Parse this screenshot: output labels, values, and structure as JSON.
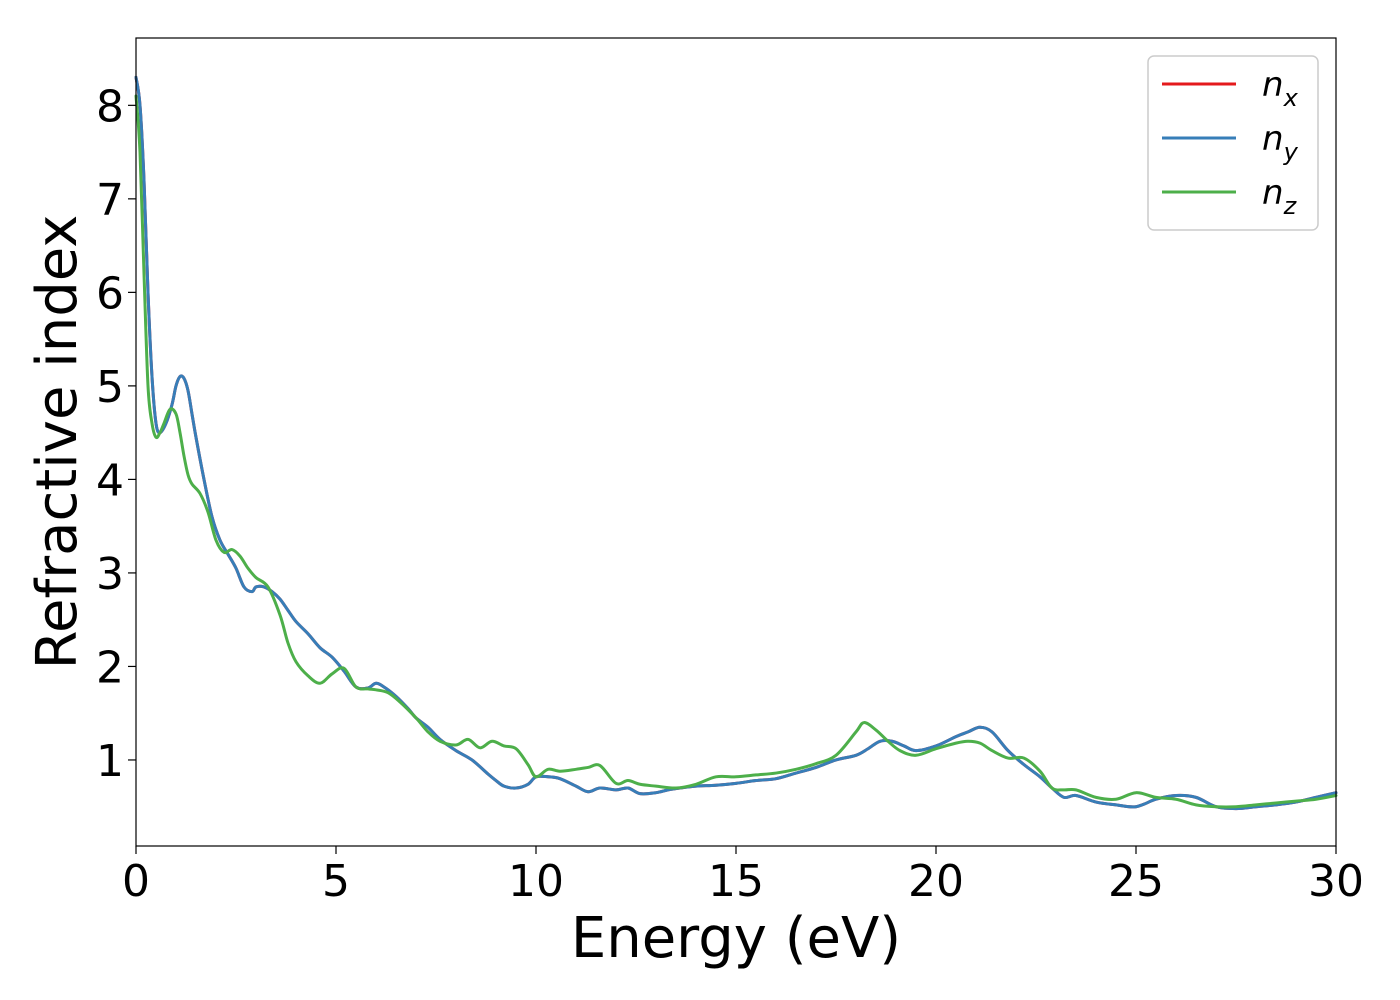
{
  "chart_data": {
    "type": "line",
    "title": "",
    "xlabel": "Energy (eV)",
    "ylabel": "Refractive index",
    "xlim": [
      0,
      30
    ],
    "ylim": [
      0.08,
      8.72
    ],
    "xticks": [
      0,
      5,
      10,
      15,
      20,
      25,
      30
    ],
    "yticks": [
      1,
      2,
      3,
      4,
      5,
      6,
      7,
      8
    ],
    "grid": false,
    "legend_position": "top-right",
    "series": [
      {
        "name": "n_x",
        "label_main": "n",
        "label_sub": "x",
        "color": "#e41a1c",
        "x": [
          0,
          0.1,
          0.2,
          0.3,
          0.4,
          0.5,
          0.6,
          0.75,
          0.9,
          1.0,
          1.1,
          1.2,
          1.3,
          1.4,
          1.5,
          1.7,
          1.9,
          2.1,
          2.3,
          2.5,
          2.7,
          2.9,
          3.0,
          3.2,
          3.4,
          3.6,
          3.8,
          4.0,
          4.3,
          4.6,
          4.9,
          5.2,
          5.5,
          5.8,
          6.0,
          6.2,
          6.5,
          6.8,
          7.0,
          7.3,
          7.6,
          8.0,
          8.4,
          8.8,
          9.0,
          9.2,
          9.5,
          9.8,
          10.0,
          10.3,
          10.6,
          11.0,
          11.3,
          11.6,
          12.0,
          12.3,
          12.6,
          13.0,
          13.3,
          13.6,
          14.0,
          14.5,
          15.0,
          15.5,
          16.0,
          16.5,
          17.0,
          17.5,
          18.0,
          18.3,
          18.6,
          18.9,
          19.2,
          19.5,
          20.0,
          20.5,
          20.8,
          21.1,
          21.4,
          21.8,
          22.2,
          22.6,
          22.9,
          23.2,
          23.5,
          24.0,
          24.5,
          25.0,
          25.5,
          26.0,
          26.5,
          27.0,
          27.5,
          28.0,
          28.5,
          29.0,
          29.5,
          30.0
        ],
        "y": [
          8.3,
          8.0,
          7.2,
          6.0,
          5.1,
          4.6,
          4.5,
          4.6,
          4.8,
          5.0,
          5.1,
          5.08,
          4.95,
          4.7,
          4.45,
          4.0,
          3.6,
          3.35,
          3.2,
          3.05,
          2.85,
          2.8,
          2.85,
          2.85,
          2.8,
          2.72,
          2.6,
          2.48,
          2.35,
          2.2,
          2.1,
          1.95,
          1.78,
          1.77,
          1.82,
          1.78,
          1.68,
          1.55,
          1.45,
          1.35,
          1.22,
          1.1,
          1.0,
          0.85,
          0.78,
          0.72,
          0.7,
          0.74,
          0.82,
          0.82,
          0.8,
          0.72,
          0.66,
          0.7,
          0.68,
          0.7,
          0.64,
          0.65,
          0.68,
          0.7,
          0.72,
          0.73,
          0.75,
          0.78,
          0.8,
          0.86,
          0.92,
          1.0,
          1.05,
          1.12,
          1.2,
          1.2,
          1.15,
          1.1,
          1.15,
          1.25,
          1.3,
          1.35,
          1.3,
          1.1,
          0.95,
          0.82,
          0.7,
          0.6,
          0.62,
          0.55,
          0.52,
          0.5,
          0.58,
          0.62,
          0.6,
          0.5,
          0.48,
          0.5,
          0.52,
          0.55,
          0.6,
          0.65
        ]
      },
      {
        "name": "n_y",
        "label_main": "n",
        "label_sub": "y",
        "color": "#377eb8",
        "x": [
          0,
          0.1,
          0.2,
          0.3,
          0.4,
          0.5,
          0.6,
          0.75,
          0.9,
          1.0,
          1.1,
          1.2,
          1.3,
          1.4,
          1.5,
          1.7,
          1.9,
          2.1,
          2.3,
          2.5,
          2.7,
          2.9,
          3.0,
          3.2,
          3.4,
          3.6,
          3.8,
          4.0,
          4.3,
          4.6,
          4.9,
          5.2,
          5.5,
          5.8,
          6.0,
          6.2,
          6.5,
          6.8,
          7.0,
          7.3,
          7.6,
          8.0,
          8.4,
          8.8,
          9.0,
          9.2,
          9.5,
          9.8,
          10.0,
          10.3,
          10.6,
          11.0,
          11.3,
          11.6,
          12.0,
          12.3,
          12.6,
          13.0,
          13.3,
          13.6,
          14.0,
          14.5,
          15.0,
          15.5,
          16.0,
          16.5,
          17.0,
          17.5,
          18.0,
          18.3,
          18.6,
          18.9,
          19.2,
          19.5,
          20.0,
          20.5,
          20.8,
          21.1,
          21.4,
          21.8,
          22.2,
          22.6,
          22.9,
          23.2,
          23.5,
          24.0,
          24.5,
          25.0,
          25.5,
          26.0,
          26.5,
          27.0,
          27.5,
          28.0,
          28.5,
          29.0,
          29.5,
          30.0
        ],
        "y": [
          8.3,
          8.0,
          7.2,
          6.0,
          5.1,
          4.6,
          4.5,
          4.6,
          4.8,
          5.0,
          5.1,
          5.08,
          4.95,
          4.7,
          4.45,
          4.0,
          3.6,
          3.35,
          3.2,
          3.05,
          2.85,
          2.8,
          2.85,
          2.85,
          2.8,
          2.72,
          2.6,
          2.48,
          2.35,
          2.2,
          2.1,
          1.95,
          1.78,
          1.77,
          1.82,
          1.78,
          1.68,
          1.55,
          1.45,
          1.35,
          1.22,
          1.1,
          1.0,
          0.85,
          0.78,
          0.72,
          0.7,
          0.74,
          0.82,
          0.82,
          0.8,
          0.72,
          0.66,
          0.7,
          0.68,
          0.7,
          0.64,
          0.65,
          0.68,
          0.7,
          0.72,
          0.73,
          0.75,
          0.78,
          0.8,
          0.86,
          0.92,
          1.0,
          1.05,
          1.12,
          1.2,
          1.2,
          1.15,
          1.1,
          1.15,
          1.25,
          1.3,
          1.35,
          1.3,
          1.1,
          0.95,
          0.82,
          0.7,
          0.6,
          0.62,
          0.55,
          0.52,
          0.5,
          0.58,
          0.62,
          0.6,
          0.5,
          0.48,
          0.5,
          0.52,
          0.55,
          0.6,
          0.65
        ]
      },
      {
        "name": "n_z",
        "label_main": "n",
        "label_sub": "z",
        "color": "#4daf4a",
        "x": [
          0,
          0.1,
          0.2,
          0.3,
          0.4,
          0.5,
          0.6,
          0.7,
          0.85,
          1.0,
          1.1,
          1.2,
          1.3,
          1.4,
          1.6,
          1.8,
          2.0,
          2.2,
          2.4,
          2.6,
          2.8,
          3.0,
          3.3,
          3.6,
          3.8,
          4.0,
          4.3,
          4.6,
          4.9,
          5.2,
          5.5,
          5.8,
          6.0,
          6.3,
          6.6,
          7.0,
          7.3,
          7.6,
          8.0,
          8.3,
          8.6,
          8.9,
          9.2,
          9.5,
          9.8,
          10.0,
          10.3,
          10.6,
          11.0,
          11.3,
          11.6,
          12.0,
          12.3,
          12.6,
          13.0,
          13.5,
          14.0,
          14.5,
          15.0,
          15.5,
          16.0,
          16.5,
          17.0,
          17.5,
          18.0,
          18.2,
          18.5,
          18.8,
          19.1,
          19.5,
          20.0,
          20.5,
          20.8,
          21.1,
          21.4,
          21.8,
          22.2,
          22.6,
          22.9,
          23.2,
          23.5,
          24.0,
          24.5,
          25.0,
          25.5,
          26.0,
          26.5,
          27.0,
          27.5,
          28.0,
          28.5,
          29.0,
          29.5,
          30.0
        ],
        "y": [
          8.1,
          7.5,
          6.2,
          5.0,
          4.6,
          4.45,
          4.5,
          4.6,
          4.75,
          4.7,
          4.5,
          4.25,
          4.05,
          3.95,
          3.85,
          3.65,
          3.35,
          3.22,
          3.25,
          3.18,
          3.05,
          2.95,
          2.85,
          2.55,
          2.25,
          2.05,
          1.9,
          1.82,
          1.92,
          1.98,
          1.78,
          1.76,
          1.75,
          1.72,
          1.62,
          1.45,
          1.3,
          1.2,
          1.16,
          1.22,
          1.13,
          1.2,
          1.15,
          1.12,
          0.95,
          0.82,
          0.9,
          0.88,
          0.9,
          0.92,
          0.94,
          0.75,
          0.78,
          0.74,
          0.72,
          0.7,
          0.74,
          0.82,
          0.82,
          0.84,
          0.86,
          0.9,
          0.96,
          1.05,
          1.3,
          1.4,
          1.32,
          1.2,
          1.1,
          1.05,
          1.12,
          1.18,
          1.2,
          1.18,
          1.1,
          1.02,
          1.02,
          0.88,
          0.7,
          0.68,
          0.68,
          0.6,
          0.58,
          0.65,
          0.6,
          0.58,
          0.52,
          0.5,
          0.5,
          0.52,
          0.54,
          0.56,
          0.58,
          0.62
        ]
      }
    ]
  }
}
